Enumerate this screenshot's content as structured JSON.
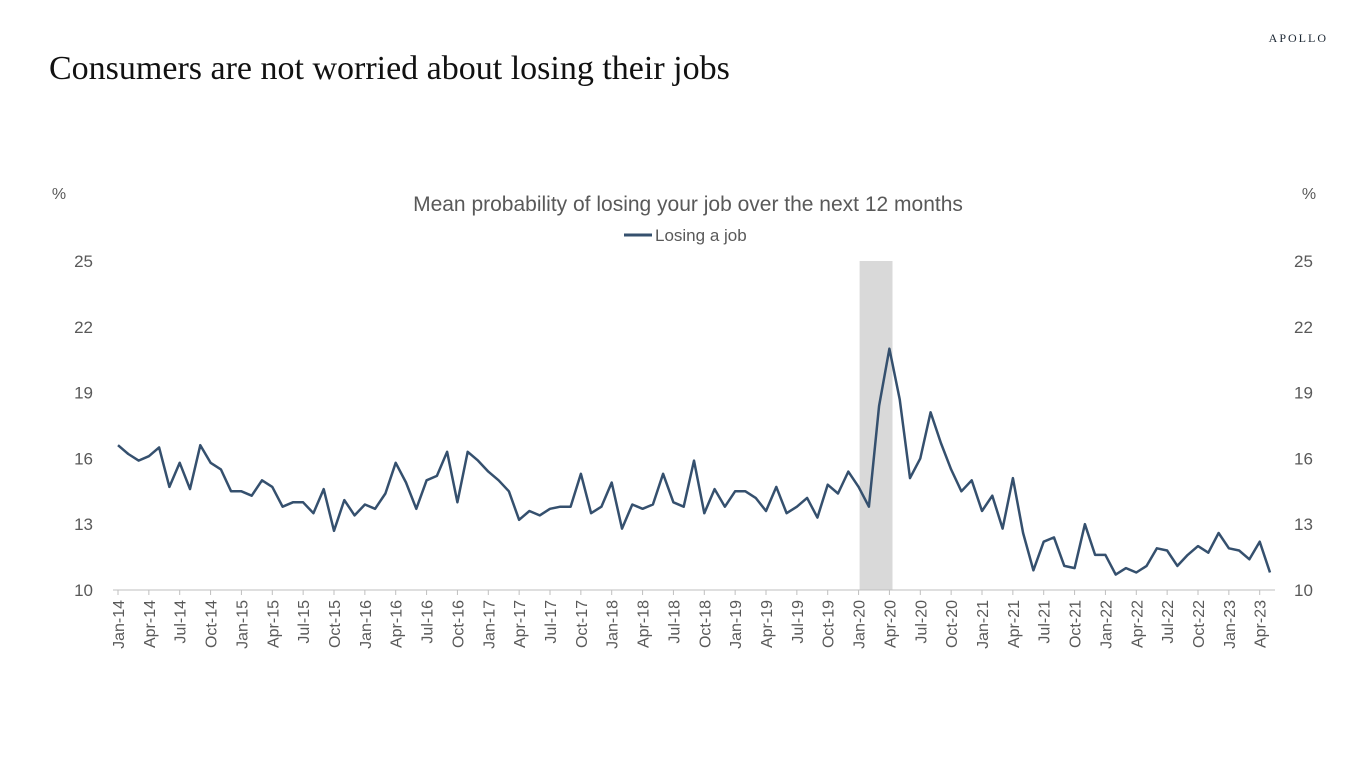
{
  "header": {
    "brand": "APOLLO",
    "headline": "Consumers are not worried about losing their jobs"
  },
  "colors": {
    "series": "#35506e",
    "recession_band": "#d9d9d9",
    "axis": "#bfbfbf",
    "text": "#595959"
  },
  "chart_data": {
    "type": "line",
    "title": "Mean probability of losing your job over the next 12 months",
    "ylabel_left": "%",
    "ylabel_right": "%",
    "ylim": [
      10,
      25
    ],
    "yticks": [
      10,
      13,
      16,
      19,
      22,
      25
    ],
    "legend": {
      "position": "top-center"
    },
    "grid": false,
    "shaded_periods": [
      {
        "start": "2020-02",
        "end": "2020-04"
      }
    ],
    "x_tick_labels": [
      "Jan-14",
      "Apr-14",
      "Jul-14",
      "Oct-14",
      "Jan-15",
      "Apr-15",
      "Jul-15",
      "Oct-15",
      "Jan-16",
      "Apr-16",
      "Jul-16",
      "Oct-16",
      "Jan-17",
      "Apr-17",
      "Jul-17",
      "Oct-17",
      "Jan-18",
      "Apr-18",
      "Jul-18",
      "Oct-18",
      "Jan-19",
      "Apr-19",
      "Jul-19",
      "Oct-19",
      "Jan-20",
      "Apr-20",
      "Jul-20",
      "Oct-20",
      "Jan-21",
      "Apr-21",
      "Jul-21",
      "Oct-21",
      "Jan-22",
      "Apr-22",
      "Jul-22",
      "Oct-22",
      "Jan-23",
      "Apr-23"
    ],
    "x": [
      "2014-01",
      "2014-02",
      "2014-03",
      "2014-04",
      "2014-05",
      "2014-06",
      "2014-07",
      "2014-08",
      "2014-09",
      "2014-10",
      "2014-11",
      "2014-12",
      "2015-01",
      "2015-02",
      "2015-03",
      "2015-04",
      "2015-05",
      "2015-06",
      "2015-07",
      "2015-08",
      "2015-09",
      "2015-10",
      "2015-11",
      "2015-12",
      "2016-01",
      "2016-02",
      "2016-03",
      "2016-04",
      "2016-05",
      "2016-06",
      "2016-07",
      "2016-08",
      "2016-09",
      "2016-10",
      "2016-11",
      "2016-12",
      "2017-01",
      "2017-02",
      "2017-03",
      "2017-04",
      "2017-05",
      "2017-06",
      "2017-07",
      "2017-08",
      "2017-09",
      "2017-10",
      "2017-11",
      "2017-12",
      "2018-01",
      "2018-02",
      "2018-03",
      "2018-04",
      "2018-05",
      "2018-06",
      "2018-07",
      "2018-08",
      "2018-09",
      "2018-10",
      "2018-11",
      "2018-12",
      "2019-01",
      "2019-02",
      "2019-03",
      "2019-04",
      "2019-05",
      "2019-06",
      "2019-07",
      "2019-08",
      "2019-09",
      "2019-10",
      "2019-11",
      "2019-12",
      "2020-01",
      "2020-02",
      "2020-03",
      "2020-04",
      "2020-05",
      "2020-06",
      "2020-07",
      "2020-08",
      "2020-09",
      "2020-10",
      "2020-11",
      "2020-12",
      "2021-01",
      "2021-02",
      "2021-03",
      "2021-04",
      "2021-05",
      "2021-06",
      "2021-07",
      "2021-08",
      "2021-09",
      "2021-10",
      "2021-11",
      "2021-12",
      "2022-01",
      "2022-02",
      "2022-03",
      "2022-04",
      "2022-05",
      "2022-06",
      "2022-07",
      "2022-08",
      "2022-09",
      "2022-10",
      "2022-11",
      "2022-12",
      "2023-01",
      "2023-02",
      "2023-03",
      "2023-04",
      "2023-05"
    ],
    "series": [
      {
        "name": "Losing a job",
        "values": [
          16.6,
          16.2,
          15.9,
          16.1,
          16.5,
          14.7,
          15.8,
          14.6,
          16.6,
          15.8,
          15.5,
          14.5,
          14.5,
          14.3,
          15.0,
          14.7,
          13.8,
          14.0,
          14.0,
          13.5,
          14.6,
          12.7,
          14.1,
          13.4,
          13.9,
          13.7,
          14.4,
          15.8,
          14.9,
          13.7,
          15.0,
          15.2,
          16.3,
          14.0,
          16.3,
          15.9,
          15.4,
          15.0,
          14.5,
          13.2,
          13.6,
          13.4,
          13.7,
          13.8,
          13.8,
          15.3,
          13.5,
          13.8,
          14.9,
          12.8,
          13.9,
          13.7,
          13.9,
          15.3,
          14.0,
          13.8,
          15.9,
          13.5,
          14.6,
          13.8,
          14.5,
          14.5,
          14.2,
          13.6,
          14.7,
          13.5,
          13.8,
          14.2,
          13.3,
          14.8,
          14.4,
          15.4,
          14.7,
          13.8,
          18.4,
          21.0,
          18.7,
          15.1,
          16.0,
          18.1,
          16.7,
          15.5,
          14.5,
          15.0,
          13.6,
          14.3,
          12.8,
          15.1,
          12.6,
          10.9,
          12.2,
          12.4,
          11.1,
          11.0,
          13.0,
          11.6,
          11.6,
          10.7,
          11.0,
          10.8,
          11.1,
          11.9,
          11.8,
          11.1,
          11.6,
          12.0,
          11.7,
          12.6,
          11.9,
          11.8,
          11.4,
          12.2,
          10.8
        ]
      }
    ]
  }
}
